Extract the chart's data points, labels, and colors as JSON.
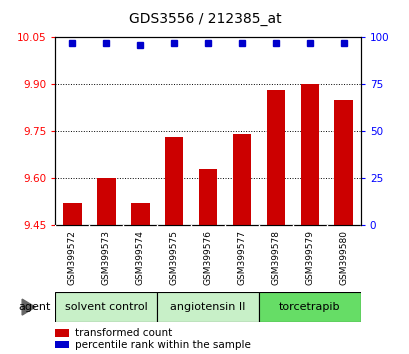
{
  "title": "GDS3556 / 212385_at",
  "samples": [
    "GSM399572",
    "GSM399573",
    "GSM399574",
    "GSM399575",
    "GSM399576",
    "GSM399577",
    "GSM399578",
    "GSM399579",
    "GSM399580"
  ],
  "red_values": [
    9.52,
    9.6,
    9.52,
    9.73,
    9.63,
    9.74,
    9.88,
    9.9,
    9.85
  ],
  "blue_values": [
    97,
    97,
    96,
    97,
    97,
    97,
    97,
    97,
    97
  ],
  "ylim_left": [
    9.45,
    10.05
  ],
  "ylim_right": [
    0,
    100
  ],
  "yticks_left": [
    9.45,
    9.6,
    9.75,
    9.9,
    10.05
  ],
  "yticks_right": [
    0,
    25,
    50,
    75,
    100
  ],
  "groups": [
    {
      "label": "solvent control",
      "indices": [
        0,
        1,
        2
      ],
      "color": "#c8f0c8"
    },
    {
      "label": "angiotensin II",
      "indices": [
        3,
        4,
        5
      ],
      "color": "#c8f0c8"
    },
    {
      "label": "torcetrapib",
      "indices": [
        6,
        7,
        8
      ],
      "color": "#66dd66"
    }
  ],
  "bar_color": "#cc0000",
  "dot_color": "#0000cc",
  "bar_width": 0.55,
  "agent_label": "agent",
  "legend_items": [
    {
      "color": "#cc0000",
      "label": "transformed count"
    },
    {
      "color": "#0000cc",
      "label": "percentile rank within the sample"
    }
  ],
  "plot_bg_color": "#ffffff",
  "sample_box_color": "#d0d0d0",
  "grid_color": "#000000"
}
